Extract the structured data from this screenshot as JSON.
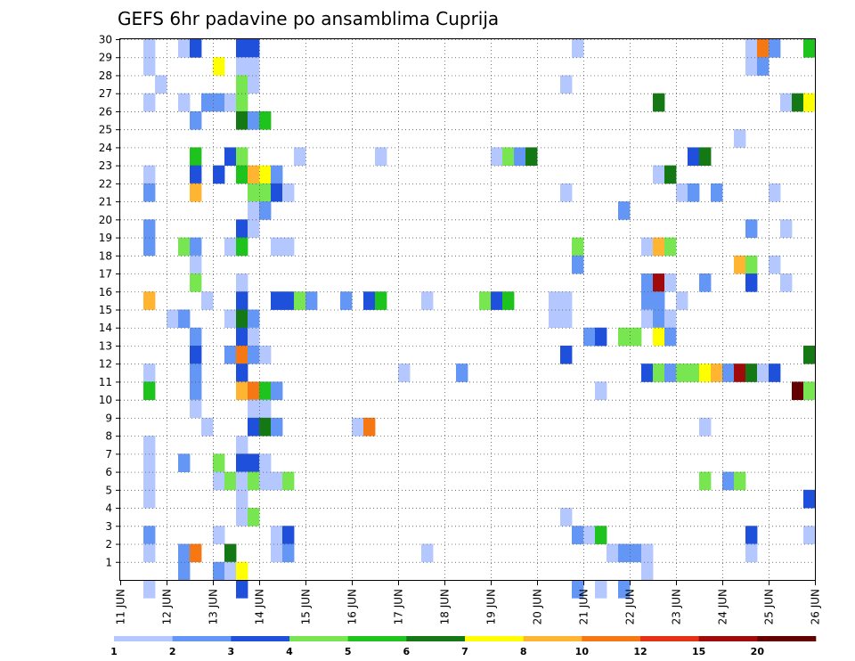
{
  "chart_data": {
    "type": "heatmap",
    "title": "GEFS 6hr padavine po ansamblima Cuprija",
    "xlabel": "",
    "ylabel": "",
    "x_labels": [
      "11 JUN",
      "12 JUN",
      "13 JUN",
      "14 JUN",
      "15 JUN",
      "16 JUN",
      "17 JUN",
      "18 JUN",
      "19 JUN",
      "20 JUN",
      "21 JUN",
      "22 JUN",
      "23 JUN",
      "24 JUN",
      "25 JUN",
      "26 JUN"
    ],
    "y_labels": [
      "1",
      "2",
      "3",
      "4",
      "5",
      "6",
      "7",
      "8",
      "9",
      "10",
      "11",
      "12",
      "13",
      "14",
      "15",
      "16",
      "17",
      "18",
      "19",
      "20",
      "21",
      "22",
      "23",
      "24",
      "25",
      "26",
      "27",
      "28",
      "29",
      "30"
    ],
    "steps_per_day": 4,
    "n_steps": 60,
    "n_members": 30,
    "grid": true,
    "colorbar": {
      "position": "bottom",
      "tick_labels": [
        "1",
        "2",
        "3",
        "4",
        "5",
        "6",
        "7",
        "8",
        "10",
        "12",
        "15",
        "20"
      ],
      "colors": [
        "#b4c8ff",
        "#6496f5",
        "#1e50dc",
        "#78e650",
        "#1ec31e",
        "#147814",
        "#ffff00",
        "#ffb432",
        "#f57814",
        "#e63214",
        "#a00a0a",
        "#640000"
      ]
    },
    "cells": [
      [
        3,
        30,
        1
      ],
      [
        6,
        30,
        1
      ],
      [
        7,
        30,
        3
      ],
      [
        11,
        30,
        3
      ],
      [
        12,
        30,
        3
      ],
      [
        40,
        30,
        1
      ],
      [
        55,
        30,
        1
      ],
      [
        56,
        30,
        9
      ],
      [
        57,
        30,
        2
      ],
      [
        60,
        30,
        5
      ],
      [
        3,
        29,
        1
      ],
      [
        9,
        29,
        7
      ],
      [
        11,
        29,
        1
      ],
      [
        12,
        29,
        1
      ],
      [
        55,
        29,
        1
      ],
      [
        56,
        29,
        2
      ],
      [
        4,
        28,
        1
      ],
      [
        11,
        28,
        4
      ],
      [
        12,
        28,
        1
      ],
      [
        39,
        28,
        1
      ],
      [
        3,
        27,
        1
      ],
      [
        6,
        27,
        1
      ],
      [
        8,
        27,
        2
      ],
      [
        9,
        27,
        2
      ],
      [
        10,
        27,
        1
      ],
      [
        11,
        27,
        4
      ],
      [
        47,
        27,
        6
      ],
      [
        58,
        27,
        1
      ],
      [
        59,
        27,
        6
      ],
      [
        60,
        27,
        7
      ],
      [
        7,
        26,
        2
      ],
      [
        11,
        26,
        6
      ],
      [
        12,
        26,
        2
      ],
      [
        13,
        26,
        5
      ],
      [
        54,
        25,
        1
      ],
      [
        7,
        24,
        5
      ],
      [
        10,
        24,
        3
      ],
      [
        11,
        24,
        4
      ],
      [
        16,
        24,
        1
      ],
      [
        23,
        24,
        1
      ],
      [
        33,
        24,
        1
      ],
      [
        34,
        24,
        4
      ],
      [
        35,
        24,
        2
      ],
      [
        36,
        24,
        6
      ],
      [
        50,
        24,
        3
      ],
      [
        51,
        24,
        6
      ],
      [
        3,
        23,
        1
      ],
      [
        7,
        23,
        3
      ],
      [
        9,
        23,
        3
      ],
      [
        11,
        23,
        5
      ],
      [
        12,
        23,
        8
      ],
      [
        13,
        23,
        7
      ],
      [
        14,
        23,
        2
      ],
      [
        47,
        23,
        1
      ],
      [
        48,
        23,
        6
      ],
      [
        3,
        22,
        2
      ],
      [
        7,
        22,
        8
      ],
      [
        12,
        22,
        4
      ],
      [
        13,
        22,
        4
      ],
      [
        14,
        22,
        3
      ],
      [
        15,
        22,
        1
      ],
      [
        39,
        22,
        1
      ],
      [
        49,
        22,
        1
      ],
      [
        50,
        22,
        2
      ],
      [
        52,
        22,
        2
      ],
      [
        57,
        22,
        1
      ],
      [
        12,
        21,
        1
      ],
      [
        13,
        21,
        2
      ],
      [
        44,
        21,
        2
      ],
      [
        3,
        20,
        2
      ],
      [
        11,
        20,
        3
      ],
      [
        12,
        20,
        1
      ],
      [
        55,
        20,
        2
      ],
      [
        58,
        20,
        1
      ],
      [
        3,
        19,
        2
      ],
      [
        6,
        19,
        4
      ],
      [
        7,
        19,
        2
      ],
      [
        10,
        19,
        1
      ],
      [
        11,
        19,
        5
      ],
      [
        14,
        19,
        1
      ],
      [
        15,
        19,
        1
      ],
      [
        40,
        19,
        4
      ],
      [
        46,
        19,
        1
      ],
      [
        47,
        19,
        8
      ],
      [
        48,
        19,
        4
      ],
      [
        7,
        18,
        1
      ],
      [
        40,
        18,
        2
      ],
      [
        54,
        18,
        8
      ],
      [
        55,
        18,
        4
      ],
      [
        57,
        18,
        1
      ],
      [
        7,
        17,
        4
      ],
      [
        11,
        17,
        1
      ],
      [
        46,
        17,
        2
      ],
      [
        47,
        17,
        11
      ],
      [
        48,
        17,
        1
      ],
      [
        51,
        17,
        2
      ],
      [
        55,
        17,
        3
      ],
      [
        58,
        17,
        1
      ],
      [
        3,
        16,
        8
      ],
      [
        8,
        16,
        1
      ],
      [
        11,
        16,
        3
      ],
      [
        14,
        16,
        3
      ],
      [
        15,
        16,
        3
      ],
      [
        16,
        16,
        4
      ],
      [
        17,
        16,
        2
      ],
      [
        20,
        16,
        2
      ],
      [
        22,
        16,
        3
      ],
      [
        23,
        16,
        5
      ],
      [
        27,
        16,
        1
      ],
      [
        32,
        16,
        4
      ],
      [
        33,
        16,
        3
      ],
      [
        34,
        16,
        5
      ],
      [
        38,
        16,
        1
      ],
      [
        39,
        16,
        1
      ],
      [
        46,
        16,
        2
      ],
      [
        47,
        16,
        2
      ],
      [
        49,
        16,
        1
      ],
      [
        5,
        15,
        1
      ],
      [
        6,
        15,
        2
      ],
      [
        10,
        15,
        1
      ],
      [
        11,
        15,
        6
      ],
      [
        12,
        15,
        2
      ],
      [
        38,
        15,
        1
      ],
      [
        39,
        15,
        1
      ],
      [
        46,
        15,
        1
      ],
      [
        47,
        15,
        2
      ],
      [
        48,
        15,
        1
      ],
      [
        7,
        14,
        2
      ],
      [
        11,
        14,
        3
      ],
      [
        12,
        14,
        1
      ],
      [
        41,
        14,
        2
      ],
      [
        42,
        14,
        3
      ],
      [
        44,
        14,
        4
      ],
      [
        45,
        14,
        4
      ],
      [
        47,
        14,
        7
      ],
      [
        48,
        14,
        2
      ],
      [
        7,
        13,
        3
      ],
      [
        10,
        13,
        2
      ],
      [
        11,
        13,
        9
      ],
      [
        12,
        13,
        2
      ],
      [
        13,
        13,
        1
      ],
      [
        39,
        13,
        3
      ],
      [
        60,
        13,
        6
      ],
      [
        3,
        12,
        1
      ],
      [
        7,
        12,
        2
      ],
      [
        11,
        12,
        3
      ],
      [
        25,
        12,
        1
      ],
      [
        30,
        12,
        2
      ],
      [
        46,
        12,
        3
      ],
      [
        47,
        12,
        4
      ],
      [
        48,
        12,
        2
      ],
      [
        49,
        12,
        4
      ],
      [
        50,
        12,
        4
      ],
      [
        51,
        12,
        7
      ],
      [
        52,
        12,
        8
      ],
      [
        53,
        12,
        2
      ],
      [
        54,
        12,
        11
      ],
      [
        55,
        12,
        6
      ],
      [
        56,
        12,
        1
      ],
      [
        57,
        12,
        3
      ],
      [
        3,
        11,
        5
      ],
      [
        7,
        11,
        2
      ],
      [
        11,
        11,
        8
      ],
      [
        12,
        11,
        9
      ],
      [
        13,
        11,
        5
      ],
      [
        14,
        11,
        2
      ],
      [
        42,
        11,
        1
      ],
      [
        59,
        11,
        12
      ],
      [
        60,
        11,
        4
      ],
      [
        7,
        10,
        1
      ],
      [
        12,
        10,
        1
      ],
      [
        13,
        10,
        1
      ],
      [
        8,
        9,
        1
      ],
      [
        12,
        9,
        3
      ],
      [
        13,
        9,
        6
      ],
      [
        14,
        9,
        2
      ],
      [
        21,
        9,
        1
      ],
      [
        22,
        9,
        9
      ],
      [
        51,
        9,
        1
      ],
      [
        3,
        8,
        1
      ],
      [
        11,
        8,
        1
      ],
      [
        3,
        7,
        1
      ],
      [
        6,
        7,
        2
      ],
      [
        9,
        7,
        4
      ],
      [
        11,
        7,
        3
      ],
      [
        12,
        7,
        3
      ],
      [
        13,
        7,
        1
      ],
      [
        3,
        6,
        1
      ],
      [
        9,
        6,
        1
      ],
      [
        10,
        6,
        4
      ],
      [
        11,
        6,
        1
      ],
      [
        12,
        6,
        4
      ],
      [
        13,
        6,
        1
      ],
      [
        14,
        6,
        1
      ],
      [
        15,
        6,
        4
      ],
      [
        51,
        6,
        4
      ],
      [
        53,
        6,
        2
      ],
      [
        54,
        6,
        4
      ],
      [
        3,
        5,
        1
      ],
      [
        11,
        5,
        1
      ],
      [
        60,
        5,
        3
      ],
      [
        11,
        4,
        1
      ],
      [
        12,
        4,
        4
      ],
      [
        39,
        4,
        1
      ],
      [
        3,
        3,
        2
      ],
      [
        9,
        3,
        1
      ],
      [
        14,
        3,
        1
      ],
      [
        15,
        3,
        3
      ],
      [
        40,
        3,
        2
      ],
      [
        41,
        3,
        1
      ],
      [
        42,
        3,
        5
      ],
      [
        55,
        3,
        3
      ],
      [
        60,
        3,
        1
      ],
      [
        3,
        2,
        1
      ],
      [
        6,
        2,
        2
      ],
      [
        7,
        2,
        9
      ],
      [
        10,
        2,
        6
      ],
      [
        14,
        2,
        1
      ],
      [
        15,
        2,
        2
      ],
      [
        27,
        2,
        1
      ],
      [
        43,
        2,
        1
      ],
      [
        44,
        2,
        2
      ],
      [
        45,
        2,
        2
      ],
      [
        46,
        2,
        1
      ],
      [
        55,
        2,
        1
      ],
      [
        6,
        1,
        2
      ],
      [
        9,
        1,
        2
      ],
      [
        10,
        1,
        1
      ],
      [
        11,
        1,
        7
      ],
      [
        46,
        1,
        1
      ],
      [
        3,
        0,
        1
      ],
      [
        11,
        0,
        3
      ],
      [
        40,
        0,
        2
      ],
      [
        42,
        0,
        1
      ],
      [
        44,
        0,
        2
      ]
    ]
  }
}
